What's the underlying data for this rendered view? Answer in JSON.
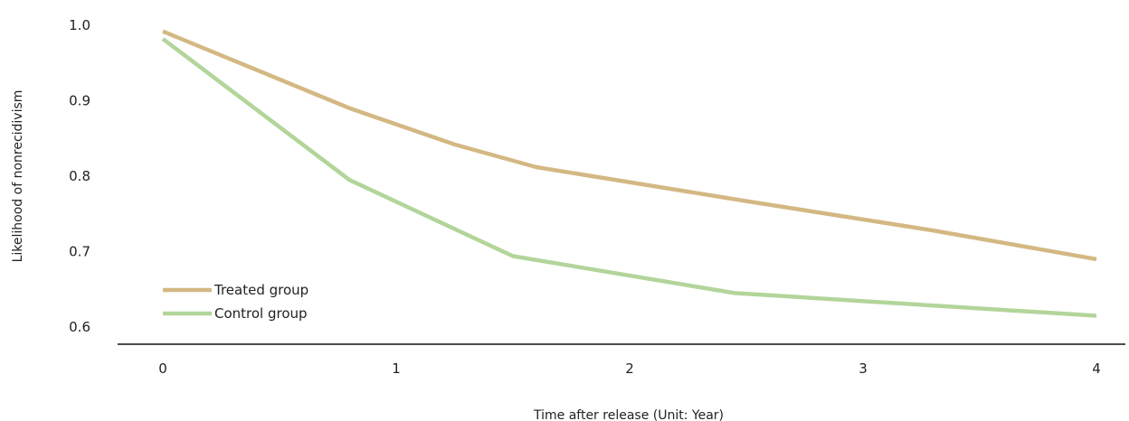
{
  "chart_data": {
    "type": "line",
    "xlabel": "Time after release (Unit: Year)",
    "ylabel": "Likelihood of nonrecidivism",
    "xlim": [
      0,
      4
    ],
    "ylim": [
      0.6,
      1.0
    ],
    "x_ticks": [
      "0",
      "1",
      "2",
      "3",
      "4"
    ],
    "y_ticks": [
      "1.0",
      "0.9",
      "0.8",
      "0.7",
      "0.6"
    ],
    "grid": false,
    "legend_position": "bottom-left",
    "series": [
      {
        "name": "Treated group",
        "color": "#d4b883",
        "x": [
          0,
          0.8,
          1.25,
          1.6,
          2.5,
          3.3,
          4
        ],
        "y": [
          0.992,
          0.89,
          0.842,
          0.812,
          0.767,
          0.728,
          0.69
        ]
      },
      {
        "name": "Control group",
        "color": "#b2d59a",
        "x": [
          0,
          0.8,
          1.5,
          2.45,
          4
        ],
        "y": [
          0.982,
          0.795,
          0.694,
          0.645,
          0.615
        ]
      }
    ]
  }
}
